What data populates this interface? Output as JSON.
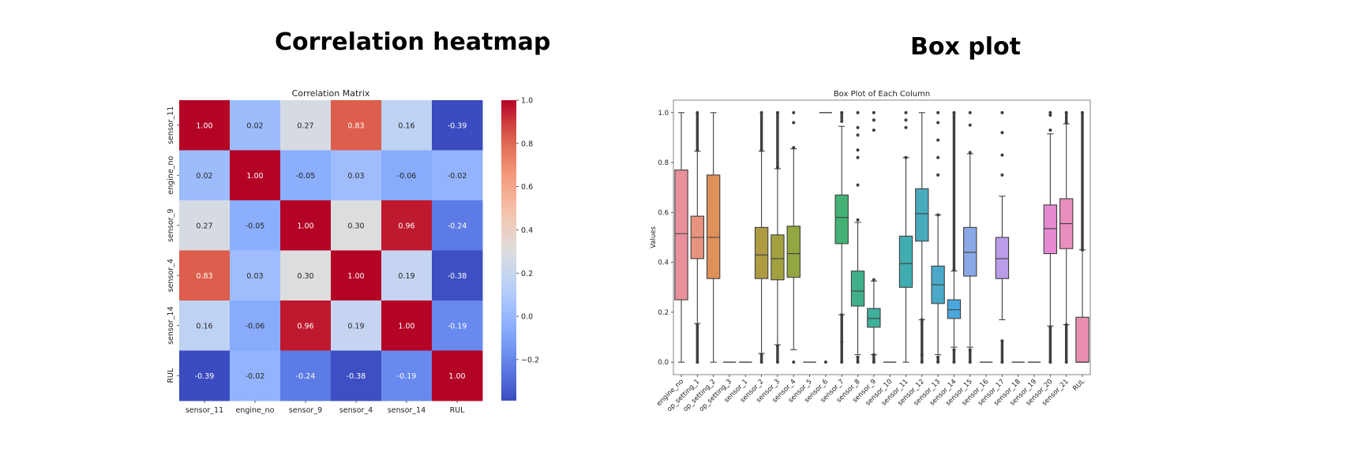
{
  "slide": {
    "left_title": "Correlation heatmap",
    "right_title": "Box plot"
  },
  "chart_data": [
    {
      "type": "heatmap",
      "title": "Correlation Matrix",
      "xlabel": "",
      "ylabel": "",
      "x_categories": [
        "sensor_11",
        "engine_no",
        "sensor_9",
        "sensor_4",
        "sensor_14",
        "RUL"
      ],
      "y_categories": [
        "sensor_11",
        "engine_no",
        "sensor_9",
        "sensor_4",
        "sensor_14",
        "RUL"
      ],
      "values": [
        [
          1.0,
          0.02,
          0.27,
          0.83,
          0.16,
          -0.39
        ],
        [
          0.02,
          1.0,
          -0.05,
          0.03,
          -0.06,
          -0.02
        ],
        [
          0.27,
          -0.05,
          1.0,
          0.3,
          0.96,
          -0.24
        ],
        [
          0.83,
          0.03,
          0.3,
          1.0,
          0.19,
          -0.38
        ],
        [
          0.16,
          -0.06,
          0.96,
          0.19,
          1.0,
          -0.19
        ],
        [
          -0.39,
          -0.02,
          -0.24,
          -0.38,
          -0.19,
          1.0
        ]
      ],
      "annotations_format": "0.00",
      "colormap": "coolwarm",
      "colorbar": {
        "range": [
          -0.39,
          1.0
        ],
        "ticks": [
          1.0,
          0.8,
          0.6,
          0.4,
          0.2,
          0.0,
          -0.2
        ],
        "tick_labels": [
          "1.0",
          "0.8",
          "0.6",
          "0.4",
          "0.2",
          "0.0",
          "−0.2"
        ],
        "placement": "right"
      }
    },
    {
      "type": "box",
      "title": "Box Plot of Each Column",
      "xlabel": "",
      "ylabel": "Values",
      "ylim": [
        -0.05,
        1.05
      ],
      "yticks": [
        0.0,
        0.2,
        0.4,
        0.6,
        0.8,
        1.0
      ],
      "ytick_labels": [
        "0.0",
        "0.2",
        "0.4",
        "0.6",
        "0.8",
        "1.0"
      ],
      "grid": false,
      "categories": [
        "engine_no",
        "op_setting_1",
        "op_setting_2",
        "op_setting_3",
        "sensor_1",
        "sensor_2",
        "sensor_3",
        "sensor_4",
        "sensor_5",
        "sensor_6",
        "sensor_7",
        "sensor_8",
        "sensor_9",
        "sensor_10",
        "sensor_11",
        "sensor_12",
        "sensor_13",
        "sensor_14",
        "sensor_15",
        "sensor_16",
        "sensor_17",
        "sensor_18",
        "sensor_19",
        "sensor_20",
        "sensor_21",
        "RUL"
      ],
      "boxes": [
        {
          "name": "engine_no",
          "whislo": 0.0,
          "q1": 0.25,
          "med": 0.515,
          "q3": 0.77,
          "whishi": 1.0,
          "color": "#e8909c",
          "fliers_low": [],
          "fliers_high": []
        },
        {
          "name": "op_setting_1",
          "whislo": 0.155,
          "q1": 0.415,
          "med": 0.5,
          "q3": 0.585,
          "whishi": 0.845,
          "color": "#e8937e",
          "fliers_low": [
            0.0,
            0.15
          ],
          "fliers_high": [
            0.85,
            1.0
          ]
        },
        {
          "name": "op_setting_2",
          "whislo": 0.0,
          "q1": 0.335,
          "med": 0.5,
          "q3": 0.75,
          "whishi": 1.0,
          "color": "#e0905a",
          "fliers_low": [],
          "fliers_high": []
        },
        {
          "name": "op_setting_3",
          "flat": 0.0,
          "color": "#d99a4e"
        },
        {
          "name": "sensor_1",
          "flat": 0.0,
          "color": "#c9a245"
        },
        {
          "name": "sensor_2",
          "whislo": 0.035,
          "q1": 0.335,
          "med": 0.43,
          "q3": 0.54,
          "whishi": 0.845,
          "color": "#b09b45",
          "fliers_low": [
            0.0,
            0.03
          ],
          "fliers_high": [
            0.85,
            1.0
          ]
        },
        {
          "name": "sensor_3",
          "whislo": 0.07,
          "q1": 0.33,
          "med": 0.415,
          "q3": 0.51,
          "whishi": 0.775,
          "color": "#a3a13f",
          "fliers_low": [
            0.0,
            0.065
          ],
          "fliers_high": [
            0.78,
            1.0
          ]
        },
        {
          "name": "sensor_4",
          "whislo": 0.05,
          "q1": 0.34,
          "med": 0.435,
          "q3": 0.545,
          "whishi": 0.855,
          "color": "#93a740",
          "fliers_low": [
            0.0
          ],
          "fliers_high": [
            0.86,
            0.96,
            1.0
          ]
        },
        {
          "name": "sensor_5",
          "flat": 0.0,
          "color": "#7bab45"
        },
        {
          "name": "sensor_6",
          "flat": 1.0,
          "color": "#5fae55",
          "fliers_low": [
            0.0
          ]
        },
        {
          "name": "sensor_7",
          "whislo": 0.19,
          "q1": 0.475,
          "med": 0.58,
          "q3": 0.67,
          "whishi": 0.945,
          "color": "#44b274",
          "fliers_low": [
            0.0,
            0.08,
            0.19
          ],
          "fliers_high": [
            0.965,
            1.0
          ]
        },
        {
          "name": "sensor_8",
          "whislo": 0.03,
          "q1": 0.225,
          "med": 0.285,
          "q3": 0.365,
          "whishi": 0.56,
          "color": "#40b08b",
          "fliers_low": [
            0.0,
            0.02
          ],
          "fliers_high": [
            0.57,
            0.71,
            0.82,
            0.85,
            0.91,
            0.94,
            1.0
          ]
        },
        {
          "name": "sensor_9",
          "whislo": 0.03,
          "q1": 0.14,
          "med": 0.175,
          "q3": 0.215,
          "whishi": 0.325,
          "color": "#3eb09c",
          "fliers_low": [
            0.0,
            0.03
          ],
          "fliers_high": [
            0.33,
            0.93,
            0.97,
            1.0
          ]
        },
        {
          "name": "sensor_10",
          "flat": 0.0,
          "color": "#3eaea8"
        },
        {
          "name": "sensor_11",
          "whislo": 0.0,
          "q1": 0.3,
          "med": 0.395,
          "q3": 0.505,
          "whishi": 0.82,
          "color": "#40adb0",
          "fliers_low": [],
          "fliers_high": [
            0.82,
            0.94,
            0.97,
            1.0
          ]
        },
        {
          "name": "sensor_12",
          "whislo": 0.17,
          "q1": 0.485,
          "med": 0.595,
          "q3": 0.695,
          "whishi": 1.0,
          "color": "#48abbc",
          "fliers_low": [
            0.0,
            0.03,
            0.17
          ],
          "fliers_high": []
        },
        {
          "name": "sensor_13",
          "whislo": 0.03,
          "q1": 0.235,
          "med": 0.31,
          "q3": 0.385,
          "whishi": 0.59,
          "color": "#4aa9c9",
          "fliers_low": [
            0.0,
            0.02
          ],
          "fliers_high": [
            0.59,
            0.75,
            0.82,
            0.89,
            0.96,
            1.0
          ]
        },
        {
          "name": "sensor_14",
          "whislo": 0.06,
          "q1": 0.175,
          "med": 0.21,
          "q3": 0.25,
          "whishi": 0.365,
          "color": "#4aa6dc",
          "fliers_low": [
            0.0,
            0.05
          ],
          "fliers_high": [
            0.37,
            1.0
          ]
        },
        {
          "name": "sensor_15",
          "whislo": 0.06,
          "q1": 0.345,
          "med": 0.44,
          "q3": 0.54,
          "whishi": 0.835,
          "color": "#8aa8e8",
          "fliers_low": [
            0.0,
            0.05
          ],
          "fliers_high": [
            0.84,
            0.95,
            1.0
          ]
        },
        {
          "name": "sensor_16",
          "flat": 0.0,
          "color": "#a59fe8"
        },
        {
          "name": "sensor_17",
          "whislo": 0.17,
          "q1": 0.335,
          "med": 0.415,
          "q3": 0.5,
          "whishi": 0.665,
          "color": "#ba9ce8",
          "fliers_low": [
            0.0,
            0.085
          ],
          "fliers_high": [
            0.75,
            0.83,
            0.92,
            1.0
          ]
        },
        {
          "name": "sensor_18",
          "flat": 0.0,
          "color": "#cf92e0"
        },
        {
          "name": "sensor_19",
          "flat": 0.0,
          "color": "#dc8cd6"
        },
        {
          "name": "sensor_20",
          "whislo": 0.145,
          "q1": 0.435,
          "med": 0.535,
          "q3": 0.63,
          "whishi": 0.915,
          "color": "#e58ad2",
          "fliers_low": [
            0.0,
            0.14
          ],
          "fliers_high": [
            0.93,
            0.99,
            1.0
          ]
        },
        {
          "name": "sensor_21",
          "whislo": 0.15,
          "q1": 0.455,
          "med": 0.555,
          "q3": 0.655,
          "whishi": 0.955,
          "color": "#e88fbd",
          "fliers_low": [
            0.0,
            0.15
          ],
          "fliers_high": [
            0.96,
            1.0
          ]
        },
        {
          "name": "RUL",
          "whislo": 0.0,
          "q1": 0.0,
          "med": 0.0,
          "q3": 0.18,
          "whishi": 0.45,
          "color": "#e88fb0",
          "fliers_low": [],
          "fliers_high": [
            0.45,
            1.0
          ]
        }
      ]
    }
  ]
}
